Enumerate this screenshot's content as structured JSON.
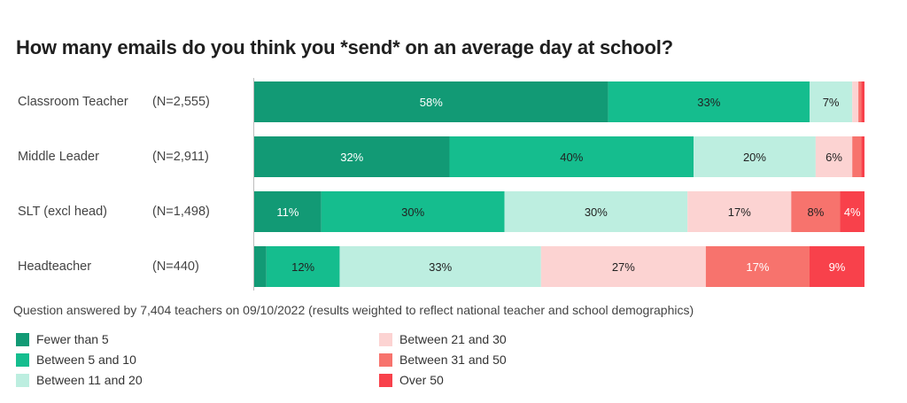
{
  "chart_data": {
    "type": "bar",
    "orientation": "horizontal",
    "stacked": true,
    "title": "How many emails do you think you *send* on an average day at school?",
    "categories": [
      "Classroom Teacher",
      "Middle Leader",
      "SLT (excl head)",
      "Headteacher"
    ],
    "sample_sizes": [
      "(N=2,555)",
      "(N=2,911)",
      "(N=1,498)",
      "(N=440)"
    ],
    "series": [
      {
        "name": "Fewer than 5",
        "color": "#129a75",
        "values": [
          58,
          32,
          11,
          2
        ],
        "labels": [
          "58%",
          "32%",
          "11%",
          ""
        ]
      },
      {
        "name": "Between 5 and 10",
        "color": "#15bd8e",
        "values": [
          33,
          40,
          30,
          12
        ],
        "labels": [
          "33%",
          "40%",
          "30%",
          "12%"
        ]
      },
      {
        "name": "Between 11 and 20",
        "color": "#bdeee0",
        "values": [
          7,
          20,
          30,
          33
        ],
        "labels": [
          "7%",
          "20%",
          "30%",
          "33%"
        ]
      },
      {
        "name": "Between 21 and 30",
        "color": "#fcd3d2",
        "values": [
          1,
          6,
          17,
          27
        ],
        "labels": [
          "",
          "6%",
          "17%",
          "27%"
        ]
      },
      {
        "name": "Between 31 and 50",
        "color": "#f7736d",
        "values": [
          0.5,
          1.5,
          8,
          17
        ],
        "labels": [
          "",
          "",
          "8%",
          "17%"
        ]
      },
      {
        "name": "Over 50",
        "color": "#f8414b",
        "values": [
          0.5,
          0.5,
          4,
          9
        ],
        "labels": [
          "",
          "",
          "4%",
          "9%"
        ]
      }
    ],
    "xlim": [
      0,
      100
    ],
    "grid": false,
    "legend_position": "bottom",
    "note": "Question answered by 7,404 teachers on 09/10/2022 (results weighted to reflect national teacher and school demographics)"
  }
}
